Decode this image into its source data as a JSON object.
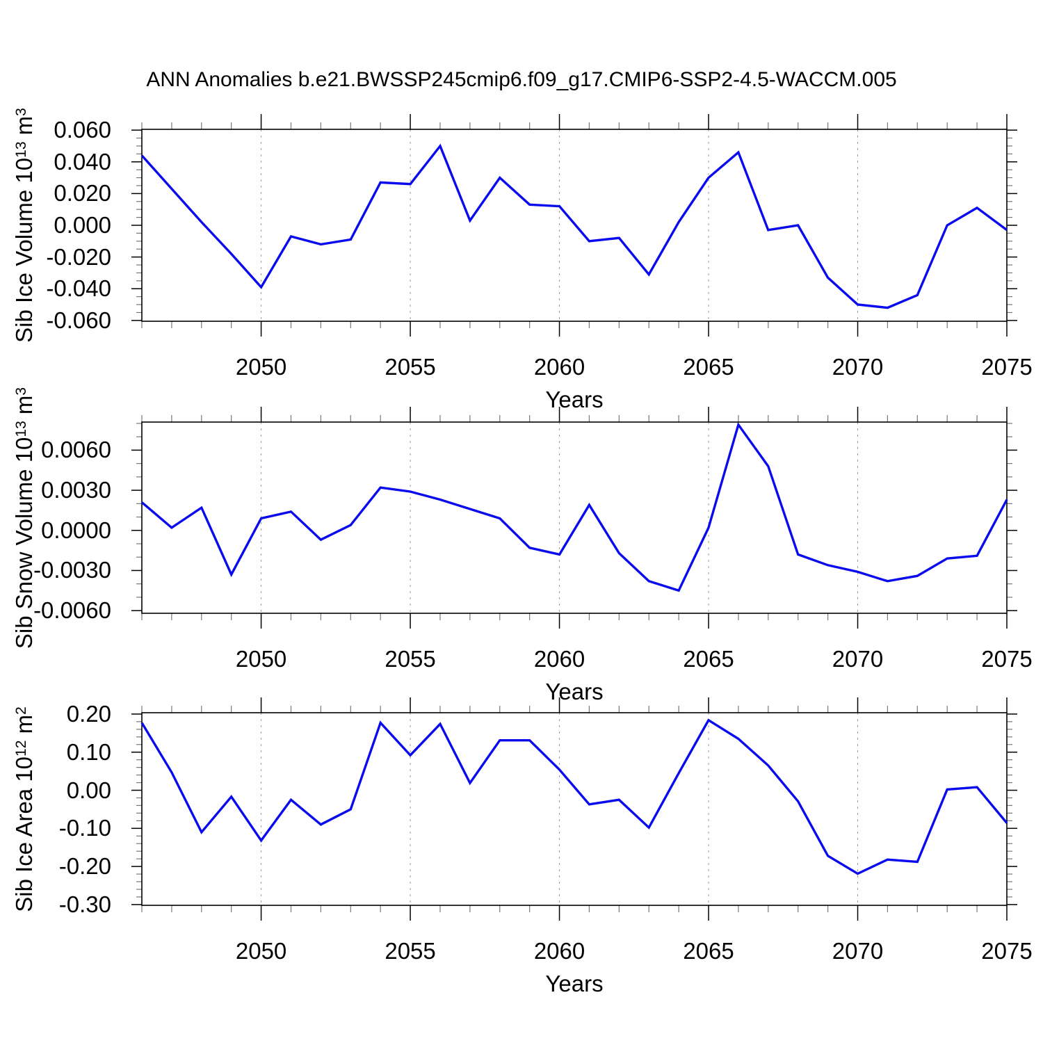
{
  "title": "ANN Anomalies b.e21.BWSSP245cmip6.f09_g17.CMIP6-SSP2-4.5-WACCM.005",
  "accent_color": "#0a0aee",
  "grid_color": "#999999",
  "chart_data": [
    {
      "type": "line",
      "ylabel": "Sib Ice Volume 10^13 m^3",
      "ylabel_parts": {
        "prefix": "Sib Ice Volume 10",
        "exp1": "13",
        "unit": " m",
        "exp2": "3"
      },
      "xlabel": "Years",
      "x": [
        2046,
        2047,
        2048,
        2049,
        2050,
        2051,
        2052,
        2053,
        2054,
        2055,
        2056,
        2057,
        2058,
        2059,
        2060,
        2061,
        2062,
        2063,
        2064,
        2065,
        2066,
        2067,
        2068,
        2069,
        2070,
        2071,
        2072,
        2073,
        2074,
        2075
      ],
      "values": [
        0.044,
        0.023,
        0.002,
        -0.018,
        -0.039,
        -0.007,
        -0.012,
        -0.009,
        0.027,
        0.026,
        0.05,
        0.003,
        0.03,
        0.013,
        0.012,
        -0.01,
        -0.008,
        -0.031,
        0.002,
        0.03,
        0.046,
        -0.003,
        0.0,
        -0.033,
        -0.05,
        -0.052,
        -0.044,
        0.0,
        0.011,
        -0.003
      ],
      "xlim": [
        2046,
        2075
      ],
      "ylim": [
        -0.0605,
        0.0605
      ],
      "yticks": [
        0.06,
        0.04,
        0.02,
        0.0,
        -0.02,
        -0.04,
        -0.06
      ],
      "ytick_labels": [
        "0.060",
        "0.040",
        "0.020",
        "0.000",
        "-0.020",
        "-0.040",
        "-0.060"
      ],
      "y_minor_step": 0.005,
      "xticks": [
        2050,
        2055,
        2060,
        2065,
        2070,
        2075
      ],
      "xtick_labels": [
        "2050",
        "2055",
        "2060",
        "2065",
        "2070",
        "2075"
      ],
      "x_minor_step": 1,
      "grid_x": [
        2050,
        2055,
        2060,
        2065,
        2070
      ],
      "legend": "none",
      "grid": "vertical-dashed"
    },
    {
      "type": "line",
      "ylabel": "Sib Snow Volume 10^13 m^3",
      "ylabel_parts": {
        "prefix": "Sib Snow Volume 10",
        "exp1": "13",
        "unit": " m",
        "exp2": "3"
      },
      "xlabel": "Years",
      "x": [
        2046,
        2047,
        2048,
        2049,
        2050,
        2051,
        2052,
        2053,
        2054,
        2055,
        2056,
        2057,
        2058,
        2059,
        2060,
        2061,
        2062,
        2063,
        2064,
        2065,
        2066,
        2067,
        2068,
        2069,
        2070,
        2071,
        2072,
        2073,
        2074,
        2075
      ],
      "values": [
        0.0021,
        0.0002,
        0.0017,
        -0.0033,
        0.0009,
        0.0014,
        -0.0007,
        0.0004,
        0.0032,
        0.0029,
        0.0023,
        0.0016,
        0.0009,
        -0.0013,
        -0.0018,
        0.0019,
        -0.0017,
        -0.0038,
        -0.0045,
        0.0002,
        0.0079,
        0.0048,
        -0.0018,
        -0.0026,
        -0.0031,
        -0.0038,
        -0.0034,
        -0.0021,
        -0.0019,
        0.0023
      ],
      "xlim": [
        2046,
        2075
      ],
      "ylim": [
        -0.0062,
        0.0081
      ],
      "yticks": [
        0.006,
        0.003,
        0.0,
        -0.003,
        -0.006
      ],
      "ytick_labels": [
        "0.0060",
        "0.0030",
        "0.0000",
        "-0.0030",
        "-0.0060"
      ],
      "y_minor_step": 0.001,
      "xticks": [
        2050,
        2055,
        2060,
        2065,
        2070,
        2075
      ],
      "xtick_labels": [
        "2050",
        "2055",
        "2060",
        "2065",
        "2070",
        "2075"
      ],
      "x_minor_step": 1,
      "grid_x": [
        2050,
        2055,
        2060,
        2065,
        2070
      ],
      "legend": "none",
      "grid": "vertical-dashed"
    },
    {
      "type": "line",
      "ylabel": "Sib Ice Area 10^12 m^2",
      "ylabel_parts": {
        "prefix": "Sib Ice Area 10",
        "exp1": "12",
        "unit": " m",
        "exp2": "2"
      },
      "xlabel": "Years",
      "x": [
        2046,
        2047,
        2048,
        2049,
        2050,
        2051,
        2052,
        2053,
        2054,
        2055,
        2056,
        2057,
        2058,
        2059,
        2060,
        2061,
        2062,
        2063,
        2064,
        2065,
        2066,
        2067,
        2068,
        2069,
        2070,
        2071,
        2072,
        2073,
        2074,
        2075
      ],
      "values": [
        0.177,
        0.047,
        -0.11,
        -0.017,
        -0.132,
        -0.025,
        -0.09,
        -0.05,
        0.177,
        0.092,
        0.174,
        0.019,
        0.131,
        0.131,
        0.054,
        -0.037,
        -0.025,
        -0.098,
        0.045,
        0.184,
        0.135,
        0.065,
        -0.029,
        -0.172,
        -0.219,
        -0.182,
        -0.188,
        0.002,
        0.008,
        -0.086
      ],
      "xlim": [
        2046,
        2075
      ],
      "ylim": [
        -0.302,
        0.2035
      ],
      "yticks": [
        0.2,
        0.1,
        0.0,
        -0.1,
        -0.2,
        -0.3
      ],
      "ytick_labels": [
        "0.20",
        "0.10",
        "0.00",
        "-0.10",
        "-0.20",
        "-0.30"
      ],
      "y_minor_step": 0.02,
      "xticks": [
        2050,
        2055,
        2060,
        2065,
        2070,
        2075
      ],
      "xtick_labels": [
        "2050",
        "2055",
        "2060",
        "2065",
        "2070",
        "2075"
      ],
      "x_minor_step": 1,
      "grid_x": [
        2050,
        2055,
        2060,
        2065,
        2070
      ],
      "legend": "none",
      "grid": "vertical-dashed"
    }
  ]
}
